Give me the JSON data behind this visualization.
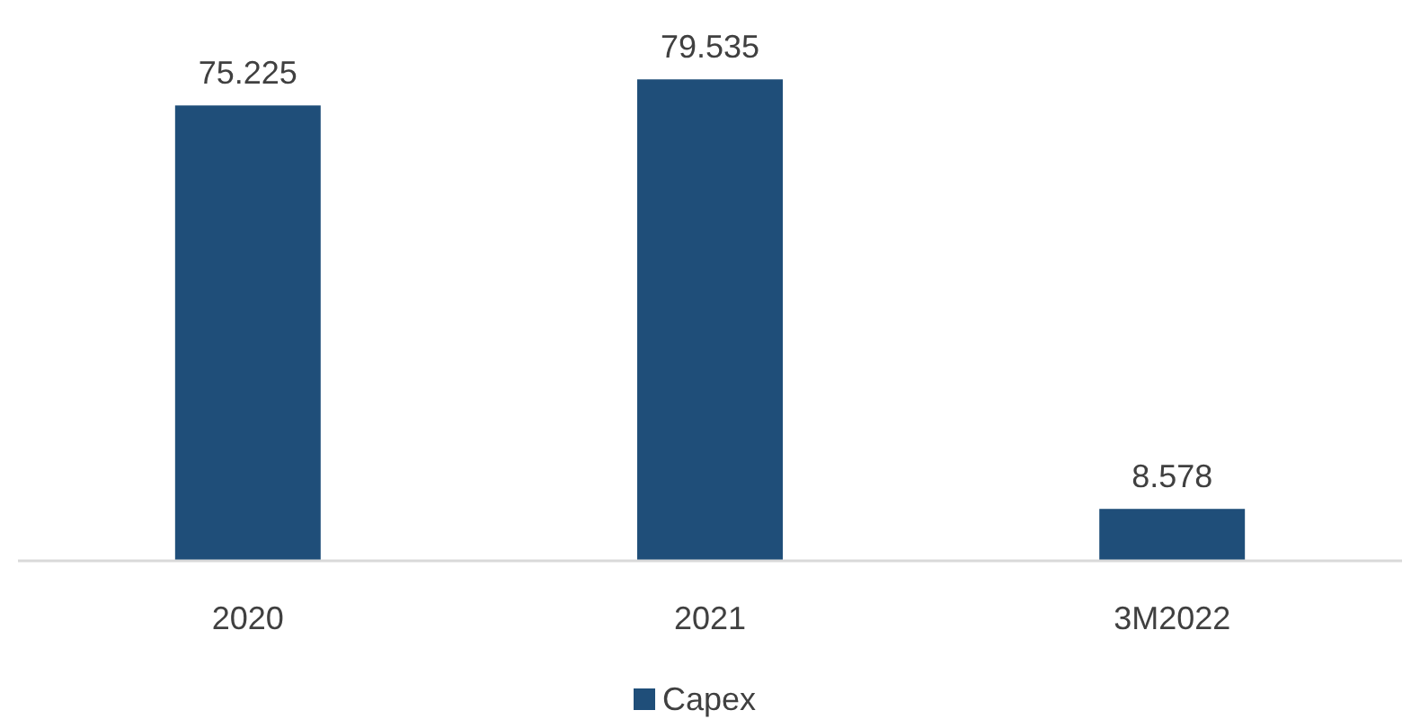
{
  "chart_data": {
    "type": "bar",
    "categories": [
      "2020",
      "2021",
      "3M2022"
    ],
    "series": [
      {
        "name": "Capex",
        "color": "#1f4e79",
        "values": [
          75.225,
          79.535,
          8.578
        ]
      }
    ],
    "data_labels": true,
    "legend": "bottom"
  }
}
